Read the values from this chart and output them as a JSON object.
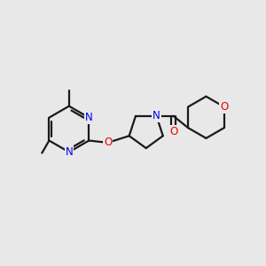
{
  "bg_color": "#e8e8e8",
  "bond_color": "#1a1a1a",
  "N_color": "#0000ee",
  "O_color": "#ee0000",
  "line_width": 1.6,
  "font_size": 8.5,
  "fig_width": 3.0,
  "fig_height": 3.0,
  "dpi": 100,
  "xlim": [
    0,
    10
  ],
  "ylim": [
    0,
    10
  ]
}
